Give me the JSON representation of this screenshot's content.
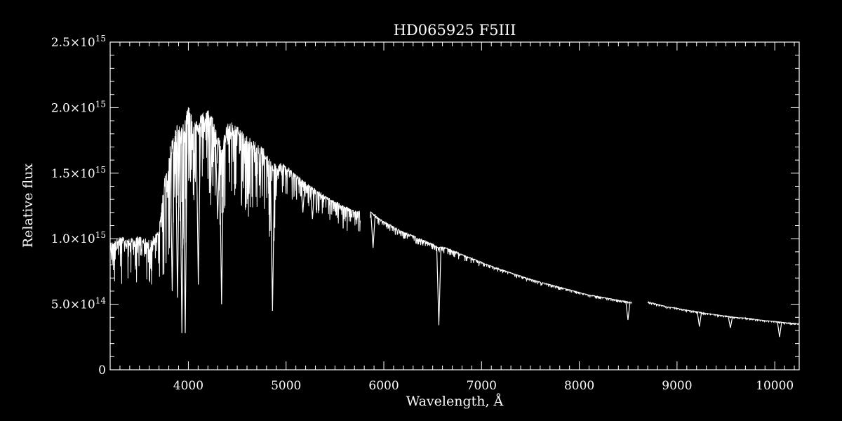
{
  "chart_data": {
    "type": "line",
    "title": "HD065925   F5III",
    "xlabel": "Wavelength, Å",
    "ylabel": "Relative flux",
    "xlim": [
      3200,
      10250
    ],
    "ylim": [
      0,
      2500000000000000.0
    ],
    "x_ticks": [
      {
        "value": 4000,
        "label": "4000"
      },
      {
        "value": 5000,
        "label": "5000"
      },
      {
        "value": 6000,
        "label": "6000"
      },
      {
        "value": 7000,
        "label": "7000"
      },
      {
        "value": 8000,
        "label": "8000"
      },
      {
        "value": 9000,
        "label": "9000"
      },
      {
        "value": 10000,
        "label": "10000"
      }
    ],
    "y_ticks": [
      {
        "value": 0,
        "mantissa": "0",
        "exponent": ""
      },
      {
        "value": 500000000000000.0,
        "mantissa": "5.0×10",
        "exponent": "14"
      },
      {
        "value": 1000000000000000.0,
        "mantissa": "1.0×10",
        "exponent": "15"
      },
      {
        "value": 1500000000000000.0,
        "mantissa": "1.5×10",
        "exponent": "15"
      },
      {
        "value": 2000000000000000.0,
        "mantissa": "2.0×10",
        "exponent": "15"
      },
      {
        "value": 2500000000000000.0,
        "mantissa": "2.5×10",
        "exponent": "15"
      }
    ],
    "series": [
      {
        "color": "#ffffff",
        "segments": [
          {
            "x": [
              3200,
              3300,
              3400,
              3500,
              3600,
              3700,
              3750,
              3800,
              3850,
              3900,
              3950,
              4000,
              4050,
              4100,
              4150,
              4200,
              4250,
              4300,
              4350,
              4400,
              4450,
              4500,
              4550,
              4600,
              4650,
              4700,
              4750,
              4800,
              4850,
              4900,
              4950,
              5000,
              5100,
              5200,
              5300,
              5400,
              5500,
              5600,
              5700,
              5760
            ],
            "y": [
              950000000000000.0,
              1000000000000000.0,
              980000000000000.0,
              1000000000000000.0,
              970000000000000.0,
              1050000000000000.0,
              1400000000000000.0,
              1600000000000000.0,
              1750000000000000.0,
              1850000000000000.0,
              1800000000000000.0,
              2000000000000000.0,
              1900000000000000.0,
              1850000000000000.0,
              1950000000000000.0,
              1950000000000000.0,
              1900000000000000.0,
              1750000000000000.0,
              1700000000000000.0,
              1850000000000000.0,
              1850000000000000.0,
              1820000000000000.0,
              1800000000000000.0,
              1750000000000000.0,
              1720000000000000.0,
              1700000000000000.0,
              1680000000000000.0,
              1620000000000000.0,
              1550000000000000.0,
              1550000000000000.0,
              1570000000000000.0,
              1550000000000000.0,
              1480000000000000.0,
              1420000000000000.0,
              1370000000000000.0,
              1320000000000000.0,
              1280000000000000.0,
              1240000000000000.0,
              1210000000000000.0,
              1200000000000000.0
            ]
          },
          {
            "x": [
              5860,
              5900,
              6000,
              6100,
              6200,
              6300,
              6400,
              6500,
              6560,
              6600,
              6700,
              6800,
              6900,
              7000,
              7100,
              7200,
              7300,
              7400,
              7500,
              7600,
              7700,
              7800,
              7900,
              8000,
              8100,
              8200,
              8300,
              8400,
              8500,
              8540
            ],
            "y": [
              1210000000000000.0,
              1180000000000000.0,
              1130000000000000.0,
              1090000000000000.0,
              1050000000000000.0,
              1020000000000000.0,
              990000000000000.0,
              960000000000000.0,
              930000000000000.0,
              940000000000000.0,
              910000000000000.0,
              880000000000000.0,
              850000000000000.0,
              820000000000000.0,
              790000000000000.0,
              765000000000000.0,
              740000000000000.0,
              715000000000000.0,
              690000000000000.0,
              670000000000000.0,
              650000000000000.0,
              630000000000000.0,
              610000000000000.0,
              590000000000000.0,
              570000000000000.0,
              560000000000000.0,
              545000000000000.0,
              530000000000000.0,
              520000000000000.0,
              515000000000000.0
            ]
          },
          {
            "x": [
              8700,
              8800,
              8900,
              9000,
              9100,
              9200,
              9300,
              9400,
              9500,
              9600,
              9700,
              9800,
              9900,
              10000,
              10100,
              10200,
              10250
            ],
            "y": [
              520000000000000.0,
              500000000000000.0,
              480000000000000.0,
              470000000000000.0,
              455000000000000.0,
              445000000000000.0,
              430000000000000.0,
              420000000000000.0,
              410000000000000.0,
              400000000000000.0,
              395000000000000.0,
              385000000000000.0,
              375000000000000.0,
              370000000000000.0,
              360000000000000.0,
              355000000000000.0,
              350000000000000.0
            ]
          }
        ],
        "absorption_lines": [
          {
            "x": 3934,
            "y": 280000000000000.0
          },
          {
            "x": 3968,
            "y": 280000000000000.0
          },
          {
            "x": 3835,
            "y": 600000000000000.0
          },
          {
            "x": 3889,
            "y": 550000000000000.0
          },
          {
            "x": 4102,
            "y": 650000000000000.0
          },
          {
            "x": 4227,
            "y": 1350000000000000.0
          },
          {
            "x": 4300,
            "y": 1150000000000000.0
          },
          {
            "x": 4340,
            "y": 500000000000000.0
          },
          {
            "x": 4861,
            "y": 450000000000000.0
          },
          {
            "x": 5172,
            "y": 1200000000000000.0
          },
          {
            "x": 5270,
            "y": 1150000000000000.0
          },
          {
            "x": 5890,
            "y": 930000000000000.0
          },
          {
            "x": 6563,
            "y": 340000000000000.0
          },
          {
            "x": 8498,
            "y": 380000000000000.0
          },
          {
            "x": 8542,
            "y": 400000000000000.0
          },
          {
            "x": 9229,
            "y": 330000000000000.0
          },
          {
            "x": 9546,
            "y": 320000000000000.0
          },
          {
            "x": 10049,
            "y": 250000000000000.0
          }
        ]
      }
    ]
  }
}
